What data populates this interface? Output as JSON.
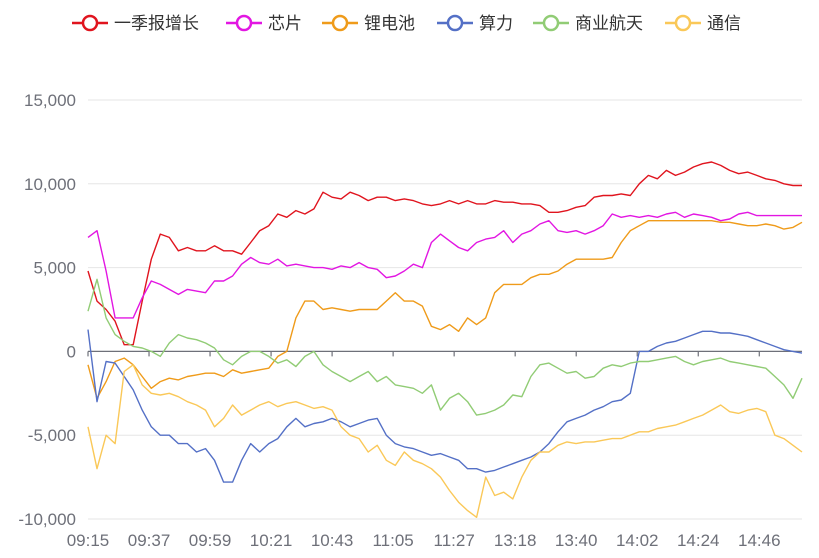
{
  "chart_data": {
    "type": "line",
    "title": "",
    "xlabel": "",
    "ylabel": "",
    "ylim": [
      -10000,
      15000
    ],
    "yticks": [
      -10000,
      -5000,
      0,
      5000,
      10000,
      15000
    ],
    "ytick_labels": [
      "-10,000",
      "-5,000",
      "0",
      "5,000",
      "10,000",
      "15,000"
    ],
    "xtick_labels": [
      "09:15",
      "09:37",
      "09:59",
      "10:21",
      "10:43",
      "11:05",
      "11:27",
      "13:18",
      "13:40",
      "14:02",
      "14:24",
      "14:46"
    ],
    "grid": "horizontal",
    "legend_position": "top",
    "x": [
      "09:15",
      "09:18",
      "09:21",
      "09:24",
      "09:27",
      "09:30",
      "09:33",
      "09:37",
      "09:40",
      "09:43",
      "09:46",
      "09:49",
      "09:52",
      "09:55",
      "09:59",
      "10:02",
      "10:05",
      "10:08",
      "10:11",
      "10:14",
      "10:17",
      "10:21",
      "10:24",
      "10:27",
      "10:30",
      "10:33",
      "10:36",
      "10:39",
      "10:43",
      "10:46",
      "10:49",
      "10:52",
      "10:55",
      "10:58",
      "11:01",
      "11:05",
      "11:08",
      "11:11",
      "11:14",
      "11:17",
      "11:20",
      "11:23",
      "11:27",
      "13:02",
      "13:05",
      "13:08",
      "13:11",
      "13:14",
      "13:18",
      "13:21",
      "13:24",
      "13:27",
      "13:30",
      "13:33",
      "13:36",
      "13:40",
      "13:43",
      "13:46",
      "13:49",
      "13:52",
      "13:55",
      "13:58",
      "14:02",
      "14:05",
      "14:08",
      "14:11",
      "14:14",
      "14:17",
      "14:20",
      "14:24",
      "14:27",
      "14:30",
      "14:33",
      "14:36",
      "14:39",
      "14:42",
      "14:46",
      "14:49",
      "14:52",
      "14:55"
    ],
    "series": [
      {
        "name": "一季报增长",
        "color": "#e0141e",
        "values": [
          4800,
          3000,
          2500,
          1800,
          400,
          400,
          3000,
          5500,
          7000,
          6800,
          6000,
          6200,
          6000,
          6000,
          6300,
          6000,
          6000,
          5800,
          6500,
          7200,
          7500,
          8200,
          8000,
          8400,
          8200,
          8500,
          9500,
          9200,
          9100,
          9500,
          9300,
          9000,
          9200,
          9200,
          9000,
          9100,
          9000,
          8800,
          8700,
          8800,
          9000,
          8800,
          9000,
          8800,
          8800,
          9000,
          8900,
          8900,
          8800,
          8800,
          8700,
          8300,
          8300,
          8400,
          8600,
          8700,
          9200,
          9300,
          9300,
          9400,
          9300,
          10000,
          10500,
          10300,
          10800,
          10500,
          10700,
          11000,
          11200,
          11300,
          11100,
          10800,
          10600,
          10700,
          10500,
          10300,
          10200,
          10000,
          9900,
          9900
        ]
      },
      {
        "name": "芯片",
        "color": "#e216e2",
        "values": [
          6800,
          7200,
          4800,
          2000,
          2000,
          2000,
          3200,
          4200,
          4000,
          3700,
          3400,
          3700,
          3600,
          3500,
          4200,
          4200,
          4500,
          5200,
          5600,
          5300,
          5200,
          5500,
          5100,
          5200,
          5100,
          5000,
          5000,
          4900,
          5100,
          5000,
          5300,
          5000,
          4900,
          4400,
          4500,
          4800,
          5200,
          5000,
          6500,
          7000,
          6600,
          6200,
          6000,
          6500,
          6700,
          6800,
          7200,
          6500,
          7000,
          7200,
          7600,
          7800,
          7200,
          7100,
          7200,
          7000,
          7200,
          7500,
          8200,
          8000,
          8100,
          8000,
          8100,
          8000,
          8200,
          8300,
          8000,
          8200,
          8100,
          8000,
          7800,
          7900,
          8200,
          8300,
          8100,
          8100,
          8100,
          8100,
          8100,
          8100
        ]
      },
      {
        "name": "锂电池",
        "color": "#ef9b1a",
        "values": [
          -800,
          -2800,
          -1800,
          -600,
          -400,
          -800,
          -1500,
          -2200,
          -1800,
          -1600,
          -1700,
          -1500,
          -1400,
          -1300,
          -1300,
          -1500,
          -1100,
          -1300,
          -1200,
          -1100,
          -1000,
          -300,
          0,
          2000,
          3000,
          3000,
          2500,
          2600,
          2500,
          2400,
          2500,
          2500,
          2500,
          3000,
          3500,
          3000,
          3000,
          2700,
          1500,
          1300,
          1600,
          1200,
          2000,
          1600,
          2000,
          3500,
          4000,
          4000,
          4000,
          4400,
          4600,
          4600,
          4800,
          5200,
          5500,
          5500,
          5500,
          5500,
          5600,
          6500,
          7200,
          7500,
          7800,
          7800,
          7800,
          7800,
          7800,
          7800,
          7800,
          7800,
          7700,
          7700,
          7600,
          7500,
          7500,
          7600,
          7500,
          7300,
          7400,
          7700
        ]
      },
      {
        "name": "算力",
        "color": "#5470c6",
        "values": [
          1300,
          -3000,
          -600,
          -700,
          -1500,
          -2300,
          -3500,
          -4500,
          -5000,
          -5000,
          -5500,
          -5500,
          -6000,
          -5800,
          -6500,
          -7800,
          -7800,
          -6500,
          -5500,
          -6000,
          -5500,
          -5200,
          -4500,
          -4000,
          -4500,
          -4300,
          -4200,
          -4000,
          -4200,
          -4500,
          -4300,
          -4100,
          -4000,
          -5000,
          -5500,
          -5700,
          -5800,
          -6000,
          -6200,
          -6100,
          -6300,
          -6500,
          -7000,
          -7000,
          -7200,
          -7100,
          -6900,
          -6700,
          -6500,
          -6300,
          -6000,
          -5500,
          -4800,
          -4200,
          -4000,
          -3800,
          -3500,
          -3300,
          -3000,
          -2900,
          -2500,
          0,
          0,
          300,
          500,
          600,
          800,
          1000,
          1200,
          1200,
          1100,
          1100,
          1000,
          900,
          700,
          500,
          300,
          100,
          0,
          -100
        ]
      },
      {
        "name": "商业航天",
        "color": "#91cc75",
        "values": [
          2400,
          4300,
          2000,
          1000,
          600,
          300,
          200,
          0,
          -300,
          500,
          1000,
          800,
          700,
          500,
          200,
          -500,
          -800,
          -300,
          0,
          0,
          -300,
          -700,
          -500,
          -900,
          -300,
          0,
          -800,
          -1200,
          -1500,
          -1800,
          -1500,
          -1200,
          -1800,
          -1500,
          -2000,
          -2100,
          -2200,
          -2500,
          -2000,
          -3500,
          -2800,
          -2500,
          -3000,
          -3800,
          -3700,
          -3500,
          -3200,
          -2600,
          -2700,
          -1500,
          -800,
          -700,
          -1000,
          -1300,
          -1200,
          -1600,
          -1500,
          -1000,
          -800,
          -900,
          -700,
          -600,
          -600,
          -500,
          -400,
          -300,
          -600,
          -800,
          -600,
          -500,
          -400,
          -600,
          -700,
          -800,
          -900,
          -1000,
          -1500,
          -2000,
          -2800,
          -1600
        ]
      },
      {
        "name": "通信",
        "color": "#fac858",
        "values": [
          -4500,
          -7000,
          -5000,
          -5500,
          -1200,
          -800,
          -2000,
          -2500,
          -2600,
          -2500,
          -2700,
          -3000,
          -3200,
          -3500,
          -4500,
          -4000,
          -3200,
          -3800,
          -3500,
          -3200,
          -3000,
          -3300,
          -3100,
          -3000,
          -3200,
          -3400,
          -3300,
          -3500,
          -4500,
          -5000,
          -5200,
          -6000,
          -5600,
          -6500,
          -6800,
          -6000,
          -6500,
          -6700,
          -7000,
          -7500,
          -8300,
          -9000,
          -9500,
          -9900,
          -7500,
          -8600,
          -8400,
          -8800,
          -7500,
          -6500,
          -6000,
          -6000,
          -5600,
          -5400,
          -5500,
          -5400,
          -5400,
          -5300,
          -5200,
          -5200,
          -5000,
          -4800,
          -4800,
          -4600,
          -4500,
          -4400,
          -4200,
          -4000,
          -3800,
          -3500,
          -3200,
          -3600,
          -3700,
          -3500,
          -3400,
          -3600,
          -5000,
          -5200,
          -5600,
          -6000
        ]
      }
    ]
  }
}
